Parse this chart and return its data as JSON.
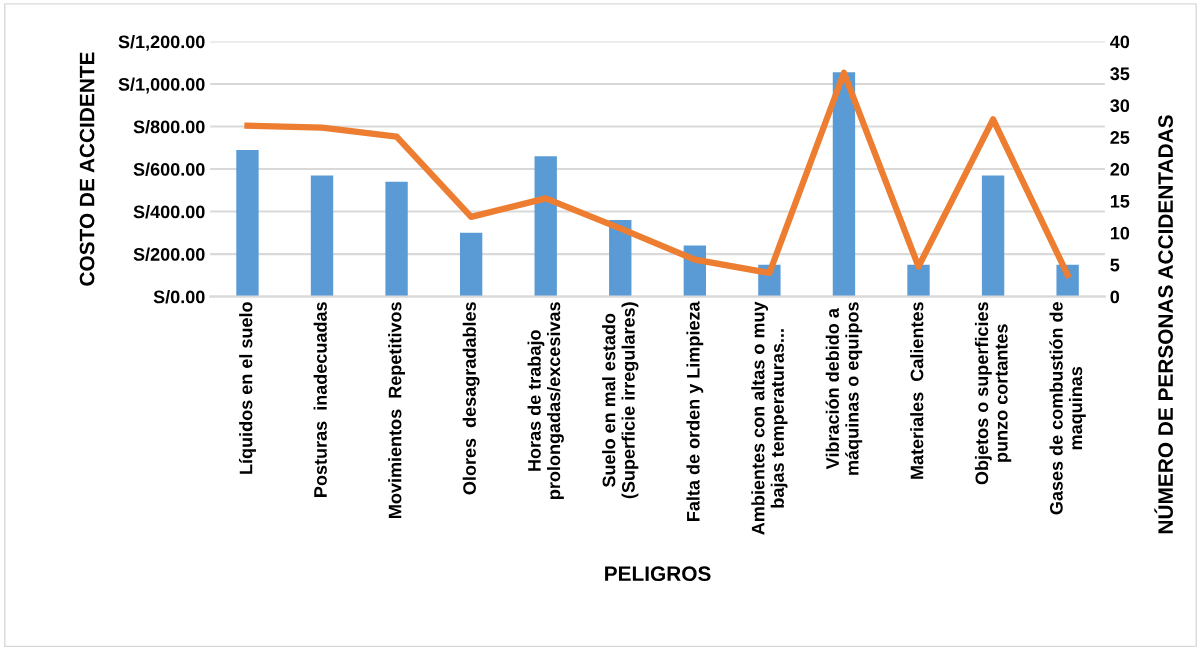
{
  "chart_data": {
    "type": "bar",
    "xlabel": "PELIGROS",
    "ylabel": "COSTO DE ACCIDENTE",
    "y2label": "NÚMERO DE PERSONAS ACCIDENTADAS",
    "categories": [
      "Líquidos en el suelo",
      "Posturas  inadecuadas",
      "Movimientos  Repetitivos",
      "Olores  desagradables",
      "Horas de trabajo\nprolongadas/excesivas",
      "Suelo en mal estado\n(Superficie irregulares)",
      "Falta de orden y Limpieza",
      "Ambientes con altas o muy\nbajas temperaturas...",
      "Vibración debido a\nmáquinas o equipos",
      "Materiales  Calientes",
      "Objetos o superficies\npunzo cortantes",
      "Gases de combustión de\nmaquinas"
    ],
    "series": [
      {
        "color": "#5b9bd5",
        "values": [
          690,
          570,
          540,
          300,
          660,
          360,
          240,
          150,
          1055,
          150,
          570,
          150
        ]
      },
      {
        "type": "line",
        "axis": "y2",
        "color": "#ed7d31",
        "line_style": "solid",
        "marker": "none",
        "values": [
          26.8,
          26.5,
          25.1,
          12.5,
          15.4,
          10.7,
          5.8,
          3.7,
          35.1,
          4.7,
          27.8,
          3.4
        ]
      }
    ],
    "ylim": [
      0,
      1200
    ],
    "yticks": [
      {
        "value": 0,
        "label": "S/0.00"
      },
      {
        "value": 200,
        "label": "S/200.00"
      },
      {
        "value": 400,
        "label": "S/400.00"
      },
      {
        "value": 600,
        "label": "S/600.00"
      },
      {
        "value": 800,
        "label": "S/800.00"
      },
      {
        "value": 1000,
        "label": "S/1,000.00"
      },
      {
        "value": 1200,
        "label": "S/1,200.00"
      }
    ],
    "y2lim": [
      0,
      40
    ],
    "y2ticks": [
      0,
      5,
      10,
      15,
      20,
      25,
      30,
      35,
      40
    ],
    "grid": "y",
    "legend": false
  }
}
